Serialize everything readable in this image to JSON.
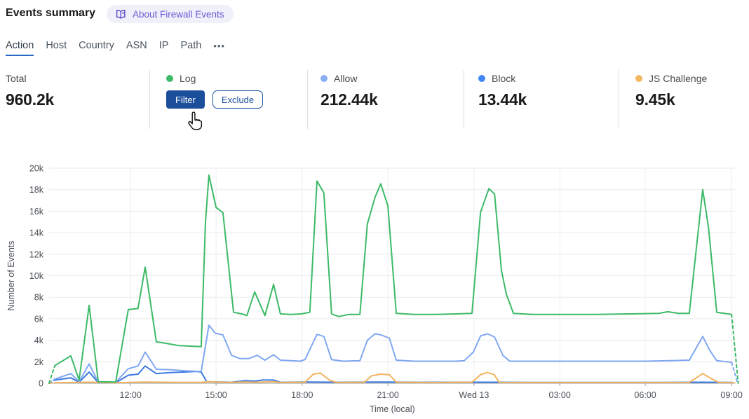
{
  "header": {
    "title": "Events summary",
    "about_label": "About Firewall Events",
    "about_icon": "book-icon"
  },
  "tabs": {
    "items": [
      "Action",
      "Host",
      "Country",
      "ASN",
      "IP",
      "Path"
    ],
    "active": "Action",
    "overflow_icon": "•••"
  },
  "stats": {
    "sections": [
      {
        "kind": "total",
        "label": "Total",
        "value": "960.2k"
      },
      {
        "kind": "hovered",
        "label": "Log",
        "dot_color": "#3EBB69",
        "buttons": [
          {
            "name": "filter-button",
            "label": "Filter",
            "style": "primary"
          },
          {
            "name": "exclude-button",
            "label": "Exclude",
            "style": "outline"
          }
        ]
      },
      {
        "kind": "value",
        "label": "Allow",
        "dot_color": "#8AAEF3",
        "value": "212.44k"
      },
      {
        "kind": "value",
        "label": "Block",
        "dot_color": "#4285F4",
        "value": "13.44k"
      },
      {
        "kind": "value",
        "label": "JS Challenge",
        "dot_color": "#F2B761",
        "value": "9.45k"
      }
    ]
  },
  "chart_data": {
    "type": "line",
    "title": "",
    "xlabel": "Time (local)",
    "ylabel": "Number of Events",
    "y_unit": "thousands of events",
    "ylim": [
      0,
      20
    ],
    "y_ticks": [
      {
        "v": 0,
        "label": "0"
      },
      {
        "v": 2,
        "label": "2k"
      },
      {
        "v": 4,
        "label": "4k"
      },
      {
        "v": 6,
        "label": "6k"
      },
      {
        "v": 8,
        "label": "8k"
      },
      {
        "v": 10,
        "label": "10k"
      },
      {
        "v": 12,
        "label": "12k"
      },
      {
        "v": 14,
        "label": "14k"
      },
      {
        "v": 16,
        "label": "16k"
      },
      {
        "v": 18,
        "label": "18k"
      },
      {
        "v": 20,
        "label": "20k"
      }
    ],
    "x_domain_hours": [
      0,
      24
    ],
    "x_ticks": [
      {
        "t": 2.85,
        "label": "12:00"
      },
      {
        "t": 5.84,
        "label": "15:00"
      },
      {
        "t": 8.85,
        "label": "18:00"
      },
      {
        "t": 11.85,
        "label": "21:00"
      },
      {
        "t": 14.86,
        "label": "Wed 13"
      },
      {
        "t": 17.86,
        "label": "03:00"
      },
      {
        "t": 20.85,
        "label": "06:00"
      },
      {
        "t": 23.87,
        "label": "09:00"
      }
    ],
    "grid": true,
    "legend_position": "stat-cards-above",
    "series": [
      {
        "name": "Log",
        "color": "#3CBA67",
        "lead_in": [
          [
            0,
            0
          ],
          [
            0.2,
            1.65
          ]
        ],
        "points": [
          [
            0.2,
            1.65
          ],
          [
            0.76,
            2.55
          ],
          [
            1.05,
            0.3
          ],
          [
            1.4,
            7.25
          ],
          [
            1.72,
            0.15
          ],
          [
            2.33,
            0.12
          ],
          [
            2.77,
            6.85
          ],
          [
            3.11,
            6.95
          ],
          [
            3.36,
            10.8
          ],
          [
            3.75,
            3.85
          ],
          [
            4.0,
            3.75
          ],
          [
            4.54,
            3.5
          ],
          [
            4.95,
            3.45
          ],
          [
            5.32,
            3.4
          ],
          [
            5.47,
            15.0
          ],
          [
            5.59,
            19.35
          ],
          [
            5.84,
            16.35
          ],
          [
            6.08,
            15.85
          ],
          [
            6.45,
            6.6
          ],
          [
            6.74,
            6.45
          ],
          [
            6.92,
            6.3
          ],
          [
            7.19,
            8.5
          ],
          [
            7.55,
            6.3
          ],
          [
            7.85,
            9.2
          ],
          [
            8.09,
            6.45
          ],
          [
            8.46,
            6.4
          ],
          [
            8.83,
            6.45
          ],
          [
            9.12,
            6.6
          ],
          [
            9.37,
            18.8
          ],
          [
            9.61,
            17.7
          ],
          [
            9.88,
            6.45
          ],
          [
            10.13,
            6.2
          ],
          [
            10.47,
            6.4
          ],
          [
            10.87,
            6.4
          ],
          [
            11.13,
            14.8
          ],
          [
            11.4,
            17.3
          ],
          [
            11.6,
            18.55
          ],
          [
            11.85,
            16.5
          ],
          [
            12.14,
            6.5
          ],
          [
            12.76,
            6.4
          ],
          [
            13.49,
            6.4
          ],
          [
            14.23,
            6.45
          ],
          [
            14.79,
            6.5
          ],
          [
            15.09,
            15.9
          ],
          [
            15.38,
            18.1
          ],
          [
            15.58,
            17.6
          ],
          [
            15.82,
            10.5
          ],
          [
            15.99,
            8.3
          ],
          [
            16.24,
            6.5
          ],
          [
            16.92,
            6.4
          ],
          [
            17.9,
            6.4
          ],
          [
            19.13,
            6.4
          ],
          [
            20.36,
            6.45
          ],
          [
            21.34,
            6.5
          ],
          [
            21.63,
            6.65
          ],
          [
            22.02,
            6.5
          ],
          [
            22.39,
            6.5
          ],
          [
            22.86,
            18.0
          ],
          [
            23.06,
            14.5
          ],
          [
            23.35,
            6.6
          ],
          [
            23.87,
            6.4
          ]
        ],
        "lead_out": [
          [
            23.87,
            6.4
          ],
          [
            24.1,
            0
          ]
        ]
      },
      {
        "name": "Allow",
        "color": "#7FA8F2",
        "lead_in": [
          [
            0,
            0
          ],
          [
            0.2,
            0.4
          ]
        ],
        "points": [
          [
            0.2,
            0.4
          ],
          [
            0.76,
            0.9
          ],
          [
            1.05,
            0.15
          ],
          [
            1.4,
            1.8
          ],
          [
            1.72,
            0.1
          ],
          [
            2.33,
            0.1
          ],
          [
            2.77,
            1.35
          ],
          [
            3.11,
            1.6
          ],
          [
            3.36,
            2.9
          ],
          [
            3.75,
            1.3
          ],
          [
            4.29,
            1.25
          ],
          [
            4.78,
            1.15
          ],
          [
            5.32,
            1.1
          ],
          [
            5.59,
            5.4
          ],
          [
            5.81,
            4.65
          ],
          [
            6.08,
            4.5
          ],
          [
            6.38,
            2.6
          ],
          [
            6.67,
            2.3
          ],
          [
            6.99,
            2.3
          ],
          [
            7.28,
            2.6
          ],
          [
            7.55,
            2.15
          ],
          [
            7.85,
            2.65
          ],
          [
            8.09,
            2.15
          ],
          [
            8.46,
            2.1
          ],
          [
            8.78,
            2.05
          ],
          [
            8.95,
            2.2
          ],
          [
            9.37,
            4.55
          ],
          [
            9.61,
            4.35
          ],
          [
            9.88,
            2.2
          ],
          [
            10.29,
            2.05
          ],
          [
            10.87,
            2.1
          ],
          [
            11.13,
            4.0
          ],
          [
            11.4,
            4.6
          ],
          [
            11.6,
            4.5
          ],
          [
            11.9,
            4.2
          ],
          [
            12.14,
            2.15
          ],
          [
            12.76,
            2.05
          ],
          [
            13.49,
            2.05
          ],
          [
            14.23,
            2.05
          ],
          [
            14.52,
            2.1
          ],
          [
            14.84,
            2.9
          ],
          [
            15.09,
            4.4
          ],
          [
            15.33,
            4.6
          ],
          [
            15.58,
            4.3
          ],
          [
            15.87,
            2.6
          ],
          [
            16.11,
            2.05
          ],
          [
            16.92,
            2.05
          ],
          [
            17.9,
            2.05
          ],
          [
            18.88,
            2.05
          ],
          [
            19.87,
            2.05
          ],
          [
            20.85,
            2.05
          ],
          [
            21.71,
            2.1
          ],
          [
            22.39,
            2.15
          ],
          [
            22.86,
            4.35
          ],
          [
            23.1,
            3.1
          ],
          [
            23.35,
            2.1
          ],
          [
            23.87,
            1.95
          ]
        ],
        "lead_out": [
          [
            23.87,
            1.95
          ],
          [
            24.08,
            0
          ]
        ]
      },
      {
        "name": "Block",
        "color": "#3B79E3",
        "lead_in": [
          [
            0,
            0
          ],
          [
            0.2,
            0.3
          ]
        ],
        "points": [
          [
            0.2,
            0.3
          ],
          [
            0.76,
            0.5
          ],
          [
            1.05,
            0.1
          ],
          [
            1.4,
            1.05
          ],
          [
            1.72,
            0.06
          ],
          [
            2.33,
            0.06
          ],
          [
            2.77,
            0.75
          ],
          [
            3.11,
            0.85
          ],
          [
            3.36,
            1.6
          ],
          [
            3.75,
            0.9
          ],
          [
            4.29,
            1.0
          ],
          [
            4.78,
            1.05
          ],
          [
            5.15,
            1.1
          ],
          [
            5.32,
            1.05
          ],
          [
            5.51,
            0.15
          ],
          [
            5.88,
            0.12
          ],
          [
            6.38,
            0.1
          ],
          [
            6.87,
            0.25
          ],
          [
            7.19,
            0.2
          ],
          [
            7.48,
            0.3
          ],
          [
            7.85,
            0.3
          ],
          [
            8.09,
            0.1
          ],
          [
            9.07,
            0.12
          ],
          [
            10.05,
            0.1
          ],
          [
            11.52,
            0.12
          ],
          [
            13.0,
            0.1
          ],
          [
            14.47,
            0.1
          ],
          [
            15.45,
            0.1
          ],
          [
            16.92,
            0.08
          ],
          [
            19.13,
            0.08
          ],
          [
            21.34,
            0.08
          ],
          [
            22.86,
            0.1
          ],
          [
            23.87,
            0.08
          ]
        ],
        "lead_out": [
          [
            23.87,
            0.08
          ],
          [
            24.05,
            0
          ]
        ]
      },
      {
        "name": "JS Challenge",
        "color": "#F1B35E",
        "lead_in": [
          [
            0,
            0
          ],
          [
            0.2,
            0.05
          ]
        ],
        "points": [
          [
            0.2,
            0.05
          ],
          [
            1.4,
            0.1
          ],
          [
            2.33,
            0.05
          ],
          [
            3.36,
            0.12
          ],
          [
            4.41,
            0.08
          ],
          [
            5.32,
            0.08
          ],
          [
            5.59,
            0.15
          ],
          [
            6.13,
            0.08
          ],
          [
            6.87,
            0.12
          ],
          [
            7.19,
            0.1
          ],
          [
            7.55,
            0.12
          ],
          [
            7.85,
            0.15
          ],
          [
            8.09,
            0.08
          ],
          [
            8.95,
            0.1
          ],
          [
            9.24,
            0.85
          ],
          [
            9.49,
            0.95
          ],
          [
            9.8,
            0.3
          ],
          [
            10.05,
            0.08
          ],
          [
            11.03,
            0.1
          ],
          [
            11.28,
            0.7
          ],
          [
            11.6,
            0.85
          ],
          [
            11.9,
            0.8
          ],
          [
            12.14,
            0.1
          ],
          [
            13.49,
            0.07
          ],
          [
            14.79,
            0.1
          ],
          [
            15.09,
            0.8
          ],
          [
            15.33,
            1.0
          ],
          [
            15.57,
            0.8
          ],
          [
            15.74,
            0.08
          ],
          [
            16.67,
            0.07
          ],
          [
            19.13,
            0.07
          ],
          [
            21.58,
            0.07
          ],
          [
            22.39,
            0.08
          ],
          [
            22.86,
            0.9
          ],
          [
            23.18,
            0.4
          ],
          [
            23.42,
            0.08
          ],
          [
            23.87,
            0.07
          ]
        ],
        "lead_out": [
          [
            23.87,
            0.07
          ],
          [
            24.03,
            0
          ]
        ]
      }
    ]
  }
}
